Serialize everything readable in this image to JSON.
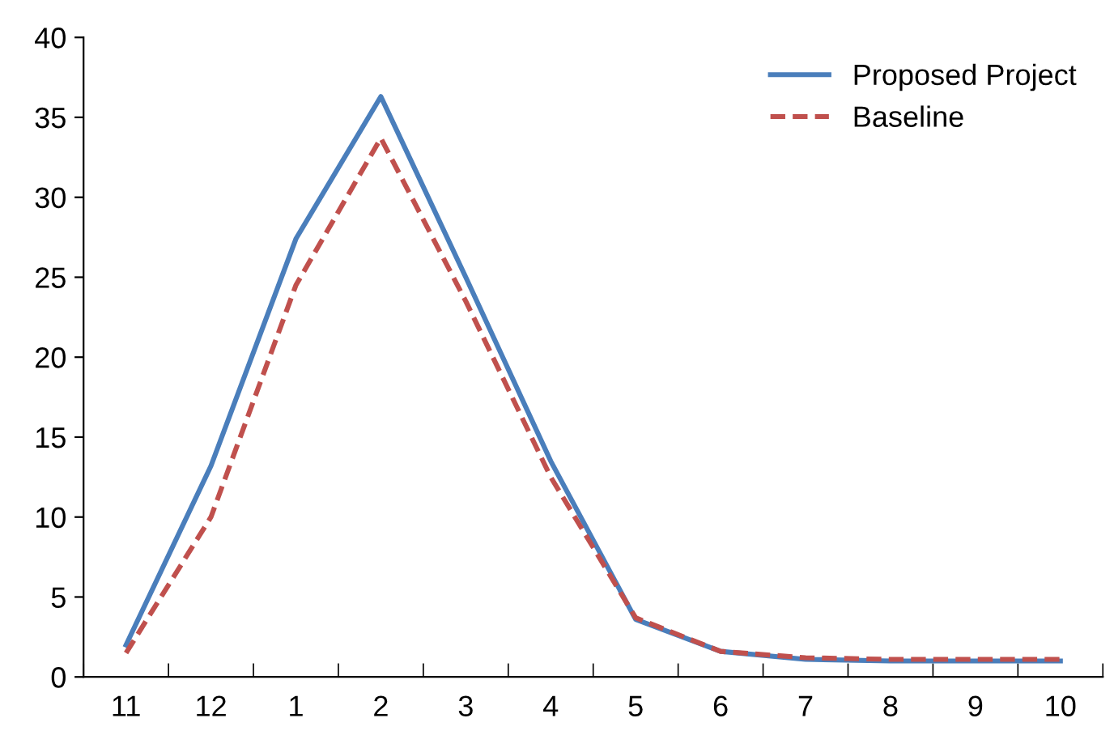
{
  "chart_data": {
    "type": "line",
    "categories": [
      "11",
      "12",
      "1",
      "2",
      "3",
      "4",
      "5",
      "6",
      "7",
      "8",
      "9",
      "10"
    ],
    "series": [
      {
        "name": "Proposed Project",
        "color": "#4a7ebb",
        "line_style": "solid",
        "values": [
          2.0,
          13.2,
          27.4,
          36.3,
          25.0,
          13.5,
          3.6,
          1.6,
          1.1,
          1.0,
          1.0,
          1.0
        ]
      },
      {
        "name": "Baseline",
        "color": "#c0504d",
        "line_style": "dashed",
        "values": [
          1.5,
          10.0,
          24.5,
          33.7,
          23.5,
          12.5,
          3.7,
          1.6,
          1.2,
          1.1,
          1.1,
          1.1
        ]
      }
    ],
    "ylim": [
      0,
      40
    ],
    "yticks": [
      0,
      5,
      10,
      15,
      20,
      25,
      30,
      35,
      40
    ],
    "grid": false,
    "legend": "top right",
    "marker": "none"
  }
}
